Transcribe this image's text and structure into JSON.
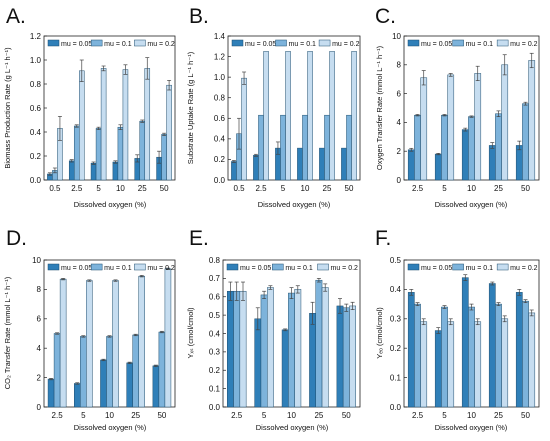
{
  "colors": {
    "mu_0_05": "#2f7fb8",
    "mu_0_1": "#7db3db",
    "mu_0_2": "#c6ddf0"
  },
  "chart_data": [
    {
      "panel": "A.",
      "type": "bar",
      "xlabel": "Dissolved oxygen (%)",
      "ylabel": "Biomass Production Rate (g L⁻¹ h⁻¹)",
      "categories": [
        "0.5",
        "2.5",
        "5",
        "10",
        "25",
        "50"
      ],
      "ylim": [
        0,
        1.2
      ],
      "yticks": [
        "0.0",
        "0.2",
        "0.4",
        "0.6",
        "0.8",
        "1.0",
        "1.2"
      ],
      "legend": "top",
      "series": [
        {
          "name": "mu = 0.05",
          "values": [
            0.05,
            0.16,
            0.14,
            0.15,
            0.18,
            0.19
          ],
          "errors": [
            0.01,
            0.01,
            0.01,
            0.01,
            0.03,
            0.05
          ]
        },
        {
          "name": "mu = 0.1",
          "values": [
            0.08,
            0.45,
            0.43,
            0.44,
            0.49,
            0.38
          ],
          "errors": [
            0.02,
            0.01,
            0.01,
            0.02,
            0.01,
            0.01
          ]
        },
        {
          "name": "mu = 0.2",
          "values": [
            0.43,
            0.91,
            0.93,
            0.92,
            0.93,
            0.79
          ],
          "errors": [
            0.1,
            0.09,
            0.02,
            0.04,
            0.09,
            0.04
          ]
        }
      ]
    },
    {
      "panel": "B.",
      "type": "bar",
      "xlabel": "Dissolved oxygen (%)",
      "ylabel": "Substrate Uptake Rate (g L⁻¹ h⁻¹)",
      "categories": [
        "0.5",
        "2.5",
        "5",
        "10",
        "25",
        "50"
      ],
      "ylim": [
        0,
        1.4
      ],
      "yticks": [
        "0.0",
        "0.2",
        "0.4",
        "0.6",
        "0.8",
        "1.0",
        "1.2",
        "1.4"
      ],
      "legend": "top",
      "series": [
        {
          "name": "mu = 0.05",
          "values": [
            0.18,
            0.24,
            0.31,
            0.31,
            0.31,
            0.31
          ],
          "errors": [
            0.01,
            0.01,
            0.06,
            0.0,
            0.0,
            0.0
          ]
        },
        {
          "name": "mu = 0.1",
          "values": [
            0.45,
            0.63,
            0.63,
            0.63,
            0.63,
            0.63
          ],
          "errors": [
            0.15,
            0.0,
            0.0,
            0.0,
            0.0,
            0.0
          ]
        },
        {
          "name": "mu = 0.2",
          "values": [
            0.99,
            1.25,
            1.25,
            1.25,
            1.25,
            1.25
          ],
          "errors": [
            0.06,
            0.0,
            0.0,
            0.0,
            0.0,
            0.0
          ]
        }
      ]
    },
    {
      "panel": "C.",
      "type": "bar",
      "xlabel": "Dissolved oxygen (%)",
      "ylabel": "Oxygen Transfer Rate (mmol L⁻¹ h⁻¹)",
      "categories": [
        "2.5",
        "5",
        "10",
        "25",
        "50"
      ],
      "ylim": [
        0,
        10
      ],
      "yticks": [
        "0",
        "2",
        "4",
        "6",
        "8",
        "10"
      ],
      "legend": "top",
      "series": [
        {
          "name": "mu = 0.05",
          "values": [
            2.1,
            1.8,
            3.5,
            2.4,
            2.4
          ],
          "errors": [
            0.1,
            0.05,
            0.1,
            0.2,
            0.3
          ]
        },
        {
          "name": "mu = 0.1",
          "values": [
            4.5,
            4.5,
            4.4,
            4.6,
            5.3
          ],
          "errors": [
            0.05,
            0.05,
            0.05,
            0.2,
            0.1
          ]
        },
        {
          "name": "mu = 0.2",
          "values": [
            7.1,
            7.3,
            7.4,
            8.0,
            8.3
          ],
          "errors": [
            0.5,
            0.1,
            0.5,
            0.7,
            0.5
          ]
        }
      ]
    },
    {
      "panel": "D.",
      "type": "bar",
      "xlabel": "Dissolved oxygen (%)",
      "ylabel": "CO₂ Transfer Rate (mmol L⁻¹ h⁻¹)",
      "categories": [
        "2.5",
        "5",
        "10",
        "25",
        "50"
      ],
      "ylim": [
        0,
        10
      ],
      "yticks": [
        "0",
        "2",
        "4",
        "6",
        "8",
        "10"
      ],
      "legend": "top",
      "series": [
        {
          "name": "mu = 0.05",
          "values": [
            1.9,
            1.6,
            3.2,
            3.0,
            2.8
          ],
          "errors": [
            0.05,
            0.05,
            0.05,
            0.05,
            0.05
          ]
        },
        {
          "name": "mu = 0.1",
          "values": [
            5.0,
            4.8,
            4.8,
            4.9,
            5.1
          ],
          "errors": [
            0.05,
            0.05,
            0.05,
            0.05,
            0.05
          ]
        },
        {
          "name": "mu = 0.2",
          "values": [
            8.7,
            8.6,
            8.6,
            8.9,
            9.4
          ],
          "errors": [
            0.05,
            0.05,
            0.05,
            0.05,
            0.05
          ]
        }
      ]
    },
    {
      "panel": "E.",
      "type": "bar",
      "xlabel": "Dissolved oxygen (%)",
      "ylabel": "Yₓₛ (cmol/cmol)",
      "categories": [
        "2.5",
        "5",
        "10",
        "25",
        "50"
      ],
      "ylim": [
        0,
        0.8
      ],
      "yticks": [
        "0.0",
        "0.1",
        "0.2",
        "0.3",
        "0.4",
        "0.5",
        "0.6",
        "0.7",
        "0.8"
      ],
      "legend": "top",
      "series": [
        {
          "name": "mu = 0.05",
          "values": [
            0.63,
            0.48,
            0.42,
            0.51,
            0.55
          ],
          "errors": [
            0.05,
            0.06,
            0.005,
            0.06,
            0.04
          ]
        },
        {
          "name": "mu = 0.1",
          "values": [
            0.63,
            0.61,
            0.62,
            0.69,
            0.54
          ],
          "errors": [
            0.05,
            0.02,
            0.03,
            0.01,
            0.02
          ]
        },
        {
          "name": "mu = 0.2",
          "values": [
            0.63,
            0.65,
            0.64,
            0.65,
            0.55
          ],
          "errors": [
            0.05,
            0.01,
            0.02,
            0.02,
            0.02
          ]
        }
      ]
    },
    {
      "panel": "F.",
      "type": "bar",
      "xlabel": "Dissolved oxygen (%)",
      "ylabel": "Yₑₒ (cmol/cmol)",
      "categories": [
        "2.5",
        "5",
        "10",
        "25",
        "50"
      ],
      "ylim": [
        0,
        0.5
      ],
      "yticks": [
        "0.0",
        "0.1",
        "0.2",
        "0.3",
        "0.4",
        "0.5"
      ],
      "legend": "top",
      "series": [
        {
          "name": "mu = 0.05",
          "values": [
            0.39,
            0.26,
            0.44,
            0.42,
            0.39
          ],
          "errors": [
            0.01,
            0.01,
            0.01,
            0.005,
            0.01
          ]
        },
        {
          "name": "mu = 0.1",
          "values": [
            0.35,
            0.34,
            0.34,
            0.35,
            0.36
          ],
          "errors": [
            0.005,
            0.005,
            0.01,
            0.005,
            0.005
          ]
        },
        {
          "name": "mu = 0.2",
          "values": [
            0.29,
            0.29,
            0.29,
            0.3,
            0.32
          ],
          "errors": [
            0.01,
            0.01,
            0.01,
            0.01,
            0.01
          ]
        }
      ]
    }
  ]
}
